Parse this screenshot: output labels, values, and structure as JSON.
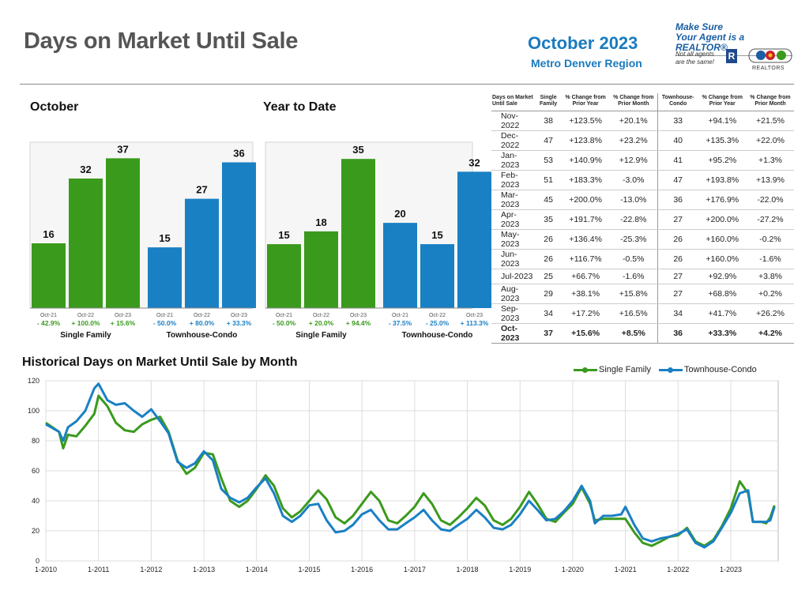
{
  "header": {
    "title": "Days on Market Until Sale",
    "month": "October 2023",
    "region": "Metro Denver Region"
  },
  "realtor_badge": {
    "line1": "Make Sure",
    "line2": "Your Agent is a REALTOR®",
    "small1": "Not all agents",
    "small2": "are the same!",
    "logo_letter": "R",
    "org_label": "REALTORS"
  },
  "colors": {
    "single_family": "#3a9a1c",
    "townhouse": "#1a80c4",
    "grid": "#dddddd"
  },
  "chart_data": [
    {
      "type": "bar",
      "title": "October",
      "categories": [
        "Oct-21",
        "Oct-22",
        "Oct-23"
      ],
      "groups": [
        {
          "name": "Single Family",
          "values": [
            16,
            32,
            37
          ],
          "changes": [
            "- 42.9%",
            "+ 100.0%",
            "+ 15.6%"
          ]
        },
        {
          "name": "Townhouse-Condo",
          "values": [
            15,
            27,
            36
          ],
          "changes": [
            "- 50.0%",
            "+ 80.0%",
            "+ 33.3%"
          ]
        }
      ],
      "ylim": [
        0,
        40
      ]
    },
    {
      "type": "bar",
      "title": "Year to Date",
      "categories": [
        "Oct-21",
        "Oct-22",
        "Oct-23"
      ],
      "groups": [
        {
          "name": "Single Family",
          "values": [
            15,
            18,
            35
          ],
          "changes": [
            "- 50.0%",
            "+ 20.0%",
            "+ 94.4%"
          ]
        },
        {
          "name": "Townhouse-Condo",
          "values": [
            20,
            15,
            32
          ],
          "changes": [
            "- 37.5%",
            "- 25.0%",
            "+ 113.3%"
          ]
        }
      ],
      "ylim": [
        0,
        38
      ]
    },
    {
      "type": "table",
      "columns": [
        "Days on Market Until Sale",
        "Single Family",
        "% Change from Prior Year",
        "% Change from Prior Month",
        "Townhouse-Condo",
        "% Change from Prior Year",
        "% Change from Prior Month"
      ],
      "rows": [
        [
          "Nov-2022",
          "38",
          "+123.5%",
          "+20.1%",
          "33",
          "+94.1%",
          "+21.5%"
        ],
        [
          "Dec-2022",
          "47",
          "+123.8%",
          "+23.2%",
          "40",
          "+135.3%",
          "+22.0%"
        ],
        [
          "Jan-2023",
          "53",
          "+140.9%",
          "+12.9%",
          "41",
          "+95.2%",
          "+1.3%"
        ],
        [
          "Feb-2023",
          "51",
          "+183.3%",
          "-3.0%",
          "47",
          "+193.8%",
          "+13.9%"
        ],
        [
          "Mar-2023",
          "45",
          "+200.0%",
          "-13.0%",
          "36",
          "+176.9%",
          "-22.0%"
        ],
        [
          "Apr-2023",
          "35",
          "+191.7%",
          "-22.8%",
          "27",
          "+200.0%",
          "-27.2%"
        ],
        [
          "May-2023",
          "26",
          "+136.4%",
          "-25.3%",
          "26",
          "+160.0%",
          "-0.2%"
        ],
        [
          "Jun-2023",
          "26",
          "+116.7%",
          "-0.5%",
          "26",
          "+160.0%",
          "-1.6%"
        ],
        [
          "Jul-2023",
          "25",
          "+66.7%",
          "-1.6%",
          "27",
          "+92.9%",
          "+3.8%"
        ],
        [
          "Aug-2023",
          "29",
          "+38.1%",
          "+15.8%",
          "27",
          "+68.8%",
          "+0.2%"
        ],
        [
          "Sep-2023",
          "34",
          "+17.2%",
          "+16.5%",
          "34",
          "+41.7%",
          "+26.2%"
        ],
        [
          "Oct-2023",
          "37",
          "+15.6%",
          "+8.5%",
          "36",
          "+33.3%",
          "+4.2%"
        ]
      ]
    },
    {
      "type": "line",
      "title": "Historical Days on Market Until Sale by Month",
      "x_ticks": [
        "1-2010",
        "1-2011",
        "1-2012",
        "1-2013",
        "1-2014",
        "1-2015",
        "1-2016",
        "1-2017",
        "1-2018",
        "1-2019",
        "1-2020",
        "1-2021",
        "1-2022",
        "1-2023"
      ],
      "ylim": [
        0,
        120
      ],
      "y_ticks": [
        0,
        20,
        40,
        60,
        80,
        100,
        120
      ],
      "grid": true,
      "legend": "top-right",
      "series": [
        {
          "name": "Single Family",
          "points": [
            [
              2010.0,
              92
            ],
            [
              2010.25,
              86
            ],
            [
              2010.33,
              75
            ],
            [
              2010.42,
              84
            ],
            [
              2010.58,
              83
            ],
            [
              2010.75,
              90
            ],
            [
              2010.92,
              98
            ],
            [
              2011.0,
              110
            ],
            [
              2011.17,
              103
            ],
            [
              2011.33,
              92
            ],
            [
              2011.5,
              87
            ],
            [
              2011.67,
              86
            ],
            [
              2011.83,
              91
            ],
            [
              2012.0,
              94
            ],
            [
              2012.17,
              96
            ],
            [
              2012.33,
              86
            ],
            [
              2012.5,
              67
            ],
            [
              2012.67,
              58
            ],
            [
              2012.83,
              62
            ],
            [
              2013.0,
              72
            ],
            [
              2013.17,
              71
            ],
            [
              2013.33,
              55
            ],
            [
              2013.5,
              40
            ],
            [
              2013.67,
              36
            ],
            [
              2013.83,
              40
            ],
            [
              2014.0,
              48
            ],
            [
              2014.17,
              57
            ],
            [
              2014.33,
              50
            ],
            [
              2014.5,
              35
            ],
            [
              2014.67,
              29
            ],
            [
              2014.83,
              33
            ],
            [
              2015.0,
              40
            ],
            [
              2015.17,
              47
            ],
            [
              2015.33,
              41
            ],
            [
              2015.5,
              29
            ],
            [
              2015.67,
              25
            ],
            [
              2015.83,
              30
            ],
            [
              2016.0,
              38
            ],
            [
              2016.17,
              46
            ],
            [
              2016.33,
              40
            ],
            [
              2016.5,
              27
            ],
            [
              2016.67,
              25
            ],
            [
              2016.83,
              30
            ],
            [
              2017.0,
              36
            ],
            [
              2017.17,
              45
            ],
            [
              2017.33,
              38
            ],
            [
              2017.5,
              27
            ],
            [
              2017.67,
              24
            ],
            [
              2017.83,
              29
            ],
            [
              2018.0,
              35
            ],
            [
              2018.17,
              42
            ],
            [
              2018.33,
              37
            ],
            [
              2018.5,
              27
            ],
            [
              2018.67,
              24
            ],
            [
              2018.83,
              28
            ],
            [
              2019.0,
              36
            ],
            [
              2019.17,
              46
            ],
            [
              2019.33,
              38
            ],
            [
              2019.5,
              28
            ],
            [
              2019.67,
              26
            ],
            [
              2019.83,
              32
            ],
            [
              2020.0,
              38
            ],
            [
              2020.17,
              49
            ],
            [
              2020.33,
              38
            ],
            [
              2020.42,
              27
            ],
            [
              2020.58,
              28
            ],
            [
              2020.75,
              28
            ],
            [
              2020.92,
              28
            ],
            [
              2021.0,
              28
            ],
            [
              2021.17,
              19
            ],
            [
              2021.33,
              12
            ],
            [
              2021.5,
              10
            ],
            [
              2021.67,
              13
            ],
            [
              2021.83,
              16
            ],
            [
              2022.0,
              17
            ],
            [
              2022.17,
              22
            ],
            [
              2022.33,
              13
            ],
            [
              2022.5,
              10
            ],
            [
              2022.67,
              14
            ],
            [
              2022.83,
              23
            ],
            [
              2023.0,
              35
            ],
            [
              2023.17,
              53
            ],
            [
              2023.33,
              45
            ],
            [
              2023.42,
              26
            ],
            [
              2023.58,
              26
            ],
            [
              2023.67,
              25
            ],
            [
              2023.75,
              29
            ],
            [
              2023.83,
              37
            ]
          ]
        },
        {
          "name": "Townhouse-Condo",
          "points": [
            [
              2010.0,
              91
            ],
            [
              2010.25,
              86
            ],
            [
              2010.33,
              80
            ],
            [
              2010.42,
              89
            ],
            [
              2010.58,
              93
            ],
            [
              2010.75,
              100
            ],
            [
              2010.92,
              115
            ],
            [
              2011.0,
              118
            ],
            [
              2011.17,
              107
            ],
            [
              2011.33,
              104
            ],
            [
              2011.5,
              105
            ],
            [
              2011.67,
              100
            ],
            [
              2011.83,
              96
            ],
            [
              2012.0,
              101
            ],
            [
              2012.17,
              93
            ],
            [
              2012.33,
              85
            ],
            [
              2012.5,
              66
            ],
            [
              2012.67,
              62
            ],
            [
              2012.83,
              65
            ],
            [
              2013.0,
              73
            ],
            [
              2013.17,
              67
            ],
            [
              2013.33,
              48
            ],
            [
              2013.5,
              42
            ],
            [
              2013.67,
              39
            ],
            [
              2013.83,
              42
            ],
            [
              2014.0,
              49
            ],
            [
              2014.17,
              55
            ],
            [
              2014.33,
              45
            ],
            [
              2014.5,
              30
            ],
            [
              2014.67,
              26
            ],
            [
              2014.83,
              30
            ],
            [
              2015.0,
              37
            ],
            [
              2015.17,
              38
            ],
            [
              2015.33,
              27
            ],
            [
              2015.5,
              19
            ],
            [
              2015.67,
              20
            ],
            [
              2015.83,
              24
            ],
            [
              2016.0,
              31
            ],
            [
              2016.17,
              34
            ],
            [
              2016.33,
              27
            ],
            [
              2016.5,
              21
            ],
            [
              2016.67,
              21
            ],
            [
              2016.83,
              25
            ],
            [
              2017.0,
              29
            ],
            [
              2017.17,
              34
            ],
            [
              2017.33,
              27
            ],
            [
              2017.5,
              21
            ],
            [
              2017.67,
              20
            ],
            [
              2017.83,
              24
            ],
            [
              2018.0,
              28
            ],
            [
              2018.17,
              34
            ],
            [
              2018.33,
              29
            ],
            [
              2018.5,
              22
            ],
            [
              2018.67,
              21
            ],
            [
              2018.83,
              24
            ],
            [
              2019.0,
              31
            ],
            [
              2019.17,
              40
            ],
            [
              2019.33,
              34
            ],
            [
              2019.5,
              27
            ],
            [
              2019.67,
              28
            ],
            [
              2019.83,
              33
            ],
            [
              2020.0,
              40
            ],
            [
              2020.17,
              50
            ],
            [
              2020.33,
              40
            ],
            [
              2020.42,
              25
            ],
            [
              2020.58,
              30
            ],
            [
              2020.75,
              30
            ],
            [
              2020.92,
              31
            ],
            [
              2021.0,
              36
            ],
            [
              2021.17,
              24
            ],
            [
              2021.33,
              15
            ],
            [
              2021.5,
              13
            ],
            [
              2021.67,
              15
            ],
            [
              2021.83,
              16
            ],
            [
              2022.0,
              18
            ],
            [
              2022.17,
              21
            ],
            [
              2022.33,
              12
            ],
            [
              2022.5,
              9
            ],
            [
              2022.67,
              13
            ],
            [
              2022.83,
              22
            ],
            [
              2023.0,
              32
            ],
            [
              2023.17,
              45
            ],
            [
              2023.33,
              47
            ],
            [
              2023.42,
              26
            ],
            [
              2023.58,
              26
            ],
            [
              2023.67,
              26
            ],
            [
              2023.75,
              27
            ],
            [
              2023.83,
              36
            ]
          ]
        }
      ]
    }
  ]
}
